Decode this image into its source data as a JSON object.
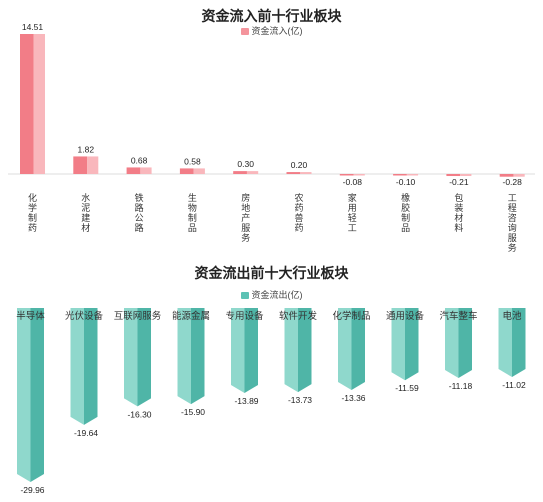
{
  "chart_data": [
    {
      "type": "bar",
      "title": "资金流入前十行业板块",
      "legend": "资金流入(亿)",
      "legend_position": "top-center",
      "color": "#f4949c",
      "categories": [
        "化学制药",
        "水泥建材",
        "铁路公路",
        "生物制品",
        "房地产服务",
        "农药兽药",
        "家用轻工",
        "橡胶制品",
        "包装材料",
        "工程咨询服务"
      ],
      "values": [
        14.51,
        1.82,
        0.68,
        0.58,
        0.3,
        0.2,
        -0.08,
        -0.1,
        -0.21,
        -0.28
      ],
      "value_labels": [
        "14.51",
        "1.82",
        "0.68",
        "0.58",
        "0.30",
        "0.20",
        "-0.08",
        "-0.10",
        "-0.21",
        "-0.28"
      ],
      "grid": false
    },
    {
      "type": "bar",
      "title": "资金流出前十大行业板块",
      "legend": "资金流出(亿)",
      "legend_position": "top-center",
      "color": "#5cc2b4",
      "categories": [
        "半导体",
        "光伏设备",
        "互联网服务",
        "能源金属",
        "专用设备",
        "软件开发",
        "化学制品",
        "通用设备",
        "汽车整车",
        "电池"
      ],
      "values": [
        -29.96,
        -19.64,
        -16.3,
        -15.9,
        -13.89,
        -13.73,
        -13.36,
        -11.59,
        -11.18,
        -11.02
      ],
      "value_labels": [
        "-29.96",
        "-19.64",
        "-16.30",
        "-15.90",
        "-13.89",
        "-13.73",
        "-13.36",
        "-11.59",
        "-11.18",
        "-11.02"
      ],
      "grid": false
    }
  ]
}
